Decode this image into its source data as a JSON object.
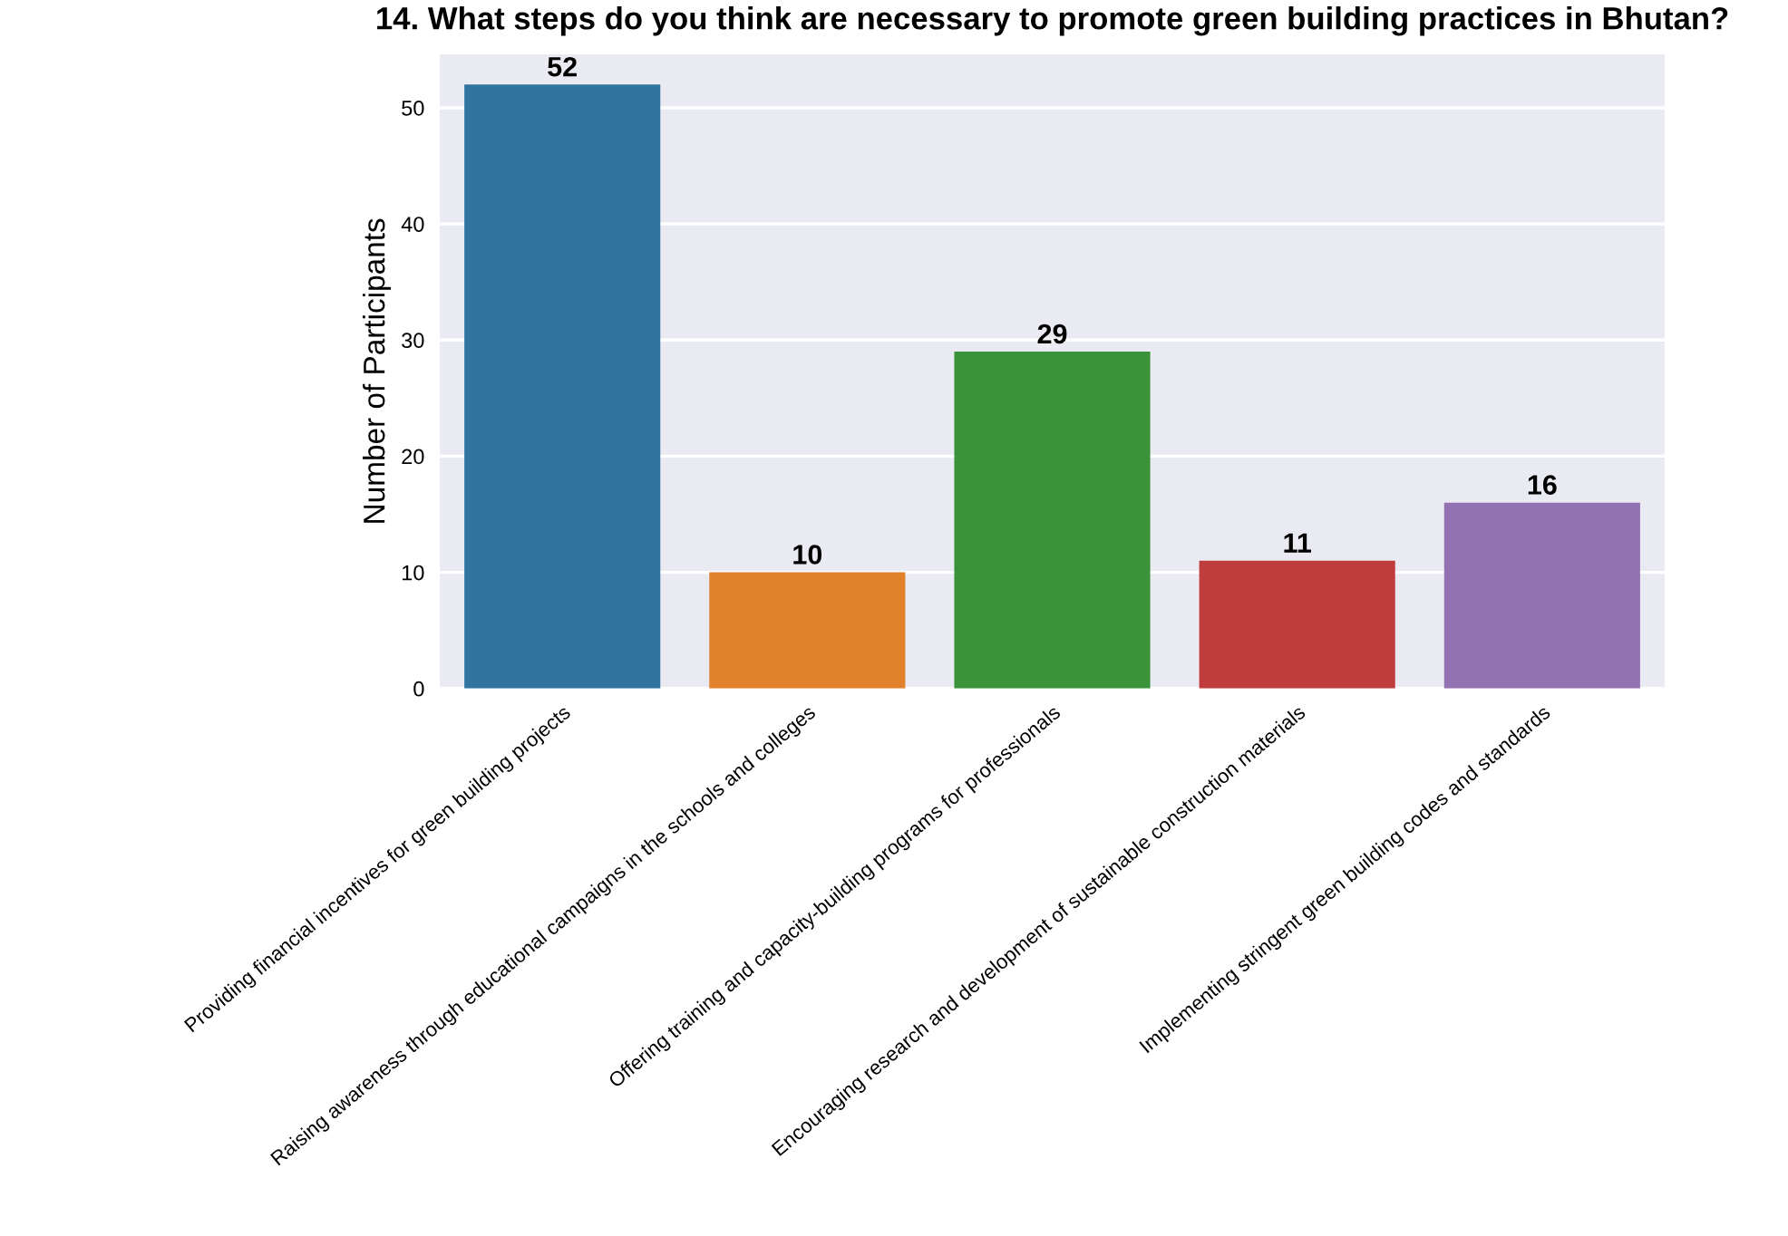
{
  "chart_data": {
    "type": "bar",
    "title": "14. What steps do you think are necessary to promote green building practices in Bhutan?",
    "ylabel": "Number of Participants",
    "categories": [
      "Providing financial incentives for green building projects",
      "Raising awareness through educational campaigns in the schools and colleges",
      "Offering training and capacity-building programs for professionals",
      "Encouraging research and development of sustainable construction materials",
      "Implementing stringent green building codes and standards"
    ],
    "values": [
      52,
      10,
      29,
      11,
      16
    ],
    "colors": [
      "#3274a1",
      "#e1812c",
      "#3a923a",
      "#c03d3e",
      "#9372b2"
    ],
    "ylim": [
      0,
      54.6
    ],
    "yticks": [
      0,
      10,
      20,
      30,
      40,
      50
    ],
    "grid": "y",
    "data_labels": true
  }
}
